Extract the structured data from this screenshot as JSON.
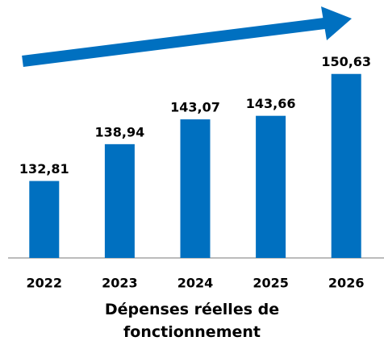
{
  "chart_data": {
    "type": "bar",
    "title": "Dépenses réelles de fonctionnement",
    "categories": [
      "2022",
      "2023",
      "2024",
      "2025",
      "2026"
    ],
    "values": [
      132.81,
      138.94,
      143.07,
      143.66,
      150.63
    ],
    "value_labels": [
      "132,81",
      "138,94",
      "143,07",
      "143,66",
      "150,63"
    ],
    "color": "#0070c0",
    "ylim": [
      120,
      162
    ]
  }
}
